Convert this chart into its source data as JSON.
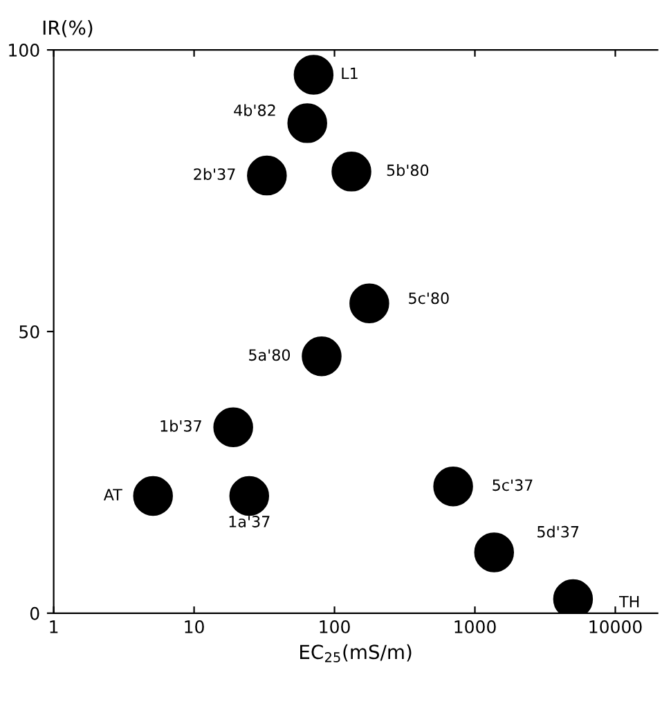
{
  "chart_data": {
    "type": "scatter",
    "xlabel": "EC$_{25}$(mS/m)",
    "ylabel": "IR(%)",
    "log": "x",
    "xlim": [
      1,
      20000
    ],
    "ylim": [
      0,
      100
    ],
    "xticks": [
      1,
      10,
      100,
      1000,
      10000
    ],
    "yticks": [
      0,
      50,
      100
    ],
    "grid": false,
    "legend": false,
    "marker": "circle",
    "series": [
      {
        "color": "#000000",
        "x": [
          71,
          64,
          33,
          132,
          177,
          81,
          19,
          5.1,
          24.7,
          700,
          1370,
          5000
        ],
        "values": [
          95.6,
          87,
          77.7,
          78.4,
          55,
          45.6,
          33,
          20.8,
          20.8,
          22.5,
          10.8,
          2.5
        ]
      }
    ],
    "annotations": [
      {
        "text": "L1",
        "x": 71,
        "y": 95.6
      },
      {
        "text": "4b'82",
        "x": 64,
        "y": 87
      },
      {
        "text": "2b'37",
        "x": 33,
        "y": 77.7
      },
      {
        "text": "5b'80",
        "x": 132,
        "y": 78.4
      },
      {
        "text": "5c'80",
        "x": 177,
        "y": 55
      },
      {
        "text": "5a'80",
        "x": 81,
        "y": 45.6
      },
      {
        "text": "1b'37",
        "x": 19,
        "y": 33
      },
      {
        "text": "AT",
        "x": 5.1,
        "y": 20.8
      },
      {
        "text": "1a'37",
        "x": 24.7,
        "y": 20.8
      },
      {
        "text": "5c'37",
        "x": 700,
        "y": 22.5
      },
      {
        "text": "5d'37",
        "x": 1370,
        "y": 10.8
      },
      {
        "text": "TH",
        "x": 5000,
        "y": 2.5
      }
    ]
  }
}
